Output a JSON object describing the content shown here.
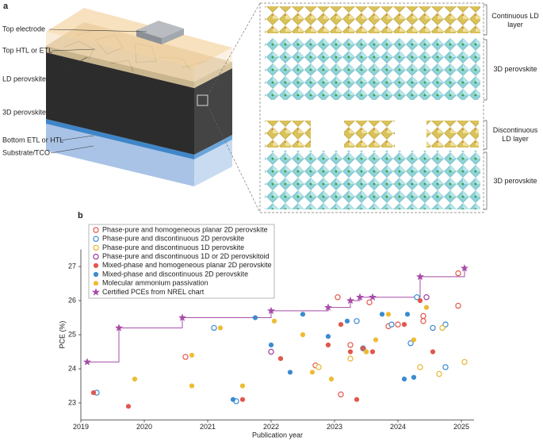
{
  "diagram": {
    "panel_label": "a",
    "layers": [
      "Top electrode",
      "Top HTL or ETL",
      "LD perovskite",
      "3D perovskite",
      "Bottom ETL or HTL",
      "Substrate/TCO"
    ],
    "zoom_labels": [
      "Continuous LD layer",
      "3D perovskite",
      "Discontinuous LD layer",
      "3D perovskite"
    ]
  },
  "chart_data": {
    "type": "scatter",
    "panel_label": "b",
    "x_label": "Publication year",
    "y_label": "PCE (%)",
    "xlim": [
      2019,
      2025.2
    ],
    "xticks": [
      2019,
      2020,
      2021,
      2022,
      2023,
      2024,
      2025
    ],
    "ylim": [
      22.5,
      27.5
    ],
    "yticks": [
      23,
      24,
      25,
      26,
      27
    ],
    "grid": false,
    "series": [
      {
        "name": "Phase-pure and homogeneous planar 2D perovskite",
        "color": "#e2574c",
        "marker": "open-circle",
        "x": [
          2020.65,
          2022.7,
          2023.05,
          2023.1,
          2023.25,
          2023.55,
          2024.0,
          2024.4,
          2024.4,
          2024.95,
          2024.95,
          2023.85
        ],
        "values": [
          24.35,
          24.1,
          26.1,
          23.25,
          24.7,
          25.95,
          25.3,
          25.55,
          25.4,
          26.8,
          25.85,
          25.25
        ]
      },
      {
        "name": "Phase-pure and discontinuous 2D perovskite",
        "color": "#3b8bd0",
        "marker": "open-circle",
        "x": [
          2019.25,
          2021.1,
          2021.45,
          2023.45,
          2023.35,
          2024.2,
          2024.55,
          2024.75,
          2024.75,
          2024.3,
          2023.9
        ],
        "values": [
          23.3,
          25.2,
          23.05,
          24.6,
          25.4,
          24.75,
          25.2,
          25.3,
          24.05,
          26.1,
          25.3
        ]
      },
      {
        "name": "Phase-pure and discontinuous 1D perovskite",
        "color": "#e8b530",
        "marker": "open-circle",
        "x": [
          2022.75,
          2023.25,
          2024.35,
          2024.65,
          2024.7,
          2025.05
        ],
        "values": [
          24.05,
          24.3,
          24.05,
          23.85,
          25.2,
          24.2
        ]
      },
      {
        "name": "Phase-pure and discontinuous 1D or 2D perovskitoid",
        "color": "#9c3b9c",
        "marker": "open-circle",
        "x": [
          2022.0,
          2024.45
        ],
        "values": [
          24.5,
          26.1
        ]
      },
      {
        "name": "Mixed-phase and homogeneous planar 2D perovskite",
        "color": "#e2574c",
        "marker": "circle",
        "x": [
          2019.2,
          2019.75,
          2021.55,
          2022.15,
          2022.9,
          2023.1,
          2023.25,
          2023.35,
          2023.45,
          2023.6,
          2024.1,
          2024.35,
          2024.55
        ],
        "values": [
          23.3,
          22.9,
          23.1,
          24.3,
          24.7,
          25.3,
          24.5,
          23.1,
          24.6,
          24.5,
          25.3,
          26.0,
          24.5
        ]
      },
      {
        "name": "Mixed-phase and discontinuous 2D perovskite",
        "color": "#3b8bd0",
        "marker": "circle",
        "x": [
          2021.4,
          2021.75,
          2022.0,
          2022.3,
          2022.5,
          2022.9,
          2023.2,
          2023.5,
          2023.75,
          2024.15,
          2024.1,
          2024.25
        ],
        "values": [
          23.1,
          25.5,
          24.7,
          23.9,
          25.6,
          24.95,
          25.4,
          24.5,
          25.6,
          25.6,
          23.7,
          23.75
        ]
      },
      {
        "name": "Molecular ammonium passivation",
        "color": "#eebb33",
        "marker": "circle",
        "x": [
          2019.85,
          2020.75,
          2020.75,
          2021.2,
          2021.55,
          2022.05,
          2022.5,
          2022.65,
          2022.95,
          2023.5,
          2023.65,
          2023.85,
          2024.25,
          2024.45
        ],
        "values": [
          23.7,
          24.4,
          23.5,
          25.2,
          23.5,
          25.4,
          25.0,
          23.9,
          23.7,
          24.5,
          24.85,
          25.6,
          24.85,
          25.8
        ]
      },
      {
        "name": "Certified PCEs from NREL chart",
        "color": "#a64ca6",
        "marker": "star",
        "line": "step",
        "x": [
          2019.1,
          2019.6,
          2020.6,
          2022.0,
          2022.9,
          2023.25,
          2023.4,
          2023.6,
          2024.35,
          2025.05
        ],
        "values": [
          24.2,
          25.2,
          25.5,
          25.7,
          25.8,
          26.0,
          26.1,
          26.1,
          26.7,
          26.95
        ]
      }
    ]
  }
}
